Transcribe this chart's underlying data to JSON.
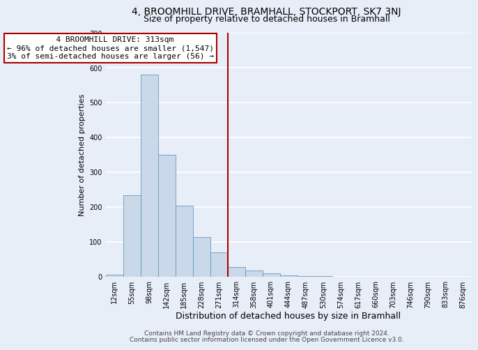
{
  "title1": "4, BROOMHILL DRIVE, BRAMHALL, STOCKPORT, SK7 3NJ",
  "title2": "Size of property relative to detached houses in Bramhall",
  "xlabel": "Distribution of detached houses by size in Bramhall",
  "ylabel": "Number of detached properties",
  "footnote1": "Contains HM Land Registry data © Crown copyright and database right 2024.",
  "footnote2": "Contains public sector information licensed under the Open Government Licence v3.0.",
  "bin_labels": [
    "12sqm",
    "55sqm",
    "98sqm",
    "142sqm",
    "185sqm",
    "228sqm",
    "271sqm",
    "314sqm",
    "358sqm",
    "401sqm",
    "444sqm",
    "487sqm",
    "530sqm",
    "574sqm",
    "617sqm",
    "660sqm",
    "703sqm",
    "746sqm",
    "790sqm",
    "833sqm",
    "876sqm"
  ],
  "bar_heights": [
    7,
    235,
    580,
    350,
    205,
    115,
    70,
    28,
    18,
    10,
    5,
    3,
    2,
    1,
    0,
    0,
    0,
    0,
    0,
    0,
    0
  ],
  "bar_color": "#c9d9ea",
  "bar_edge_color": "#6699bb",
  "vline_x": 7.0,
  "vline_color": "#aa0000",
  "annotation_line1": "  4 BROOMHILL DRIVE: 313sqm",
  "annotation_line2": "← 96% of detached houses are smaller (1,547)",
  "annotation_line3": "3% of semi-detached houses are larger (56) →",
  "annotation_box_color": "#ffffff",
  "annotation_box_edge": "#aa0000",
  "ylim": [
    0,
    700
  ],
  "yticks": [
    0,
    100,
    200,
    300,
    400,
    500,
    600,
    700
  ],
  "background_color": "#e8eef8",
  "plot_bg_color": "#e8eef8",
  "grid_color": "#ffffff",
  "title1_fontsize": 10,
  "title2_fontsize": 9,
  "xlabel_fontsize": 9,
  "ylabel_fontsize": 8,
  "tick_fontsize": 7,
  "annot_fontsize": 8,
  "footnote_fontsize": 6.5
}
